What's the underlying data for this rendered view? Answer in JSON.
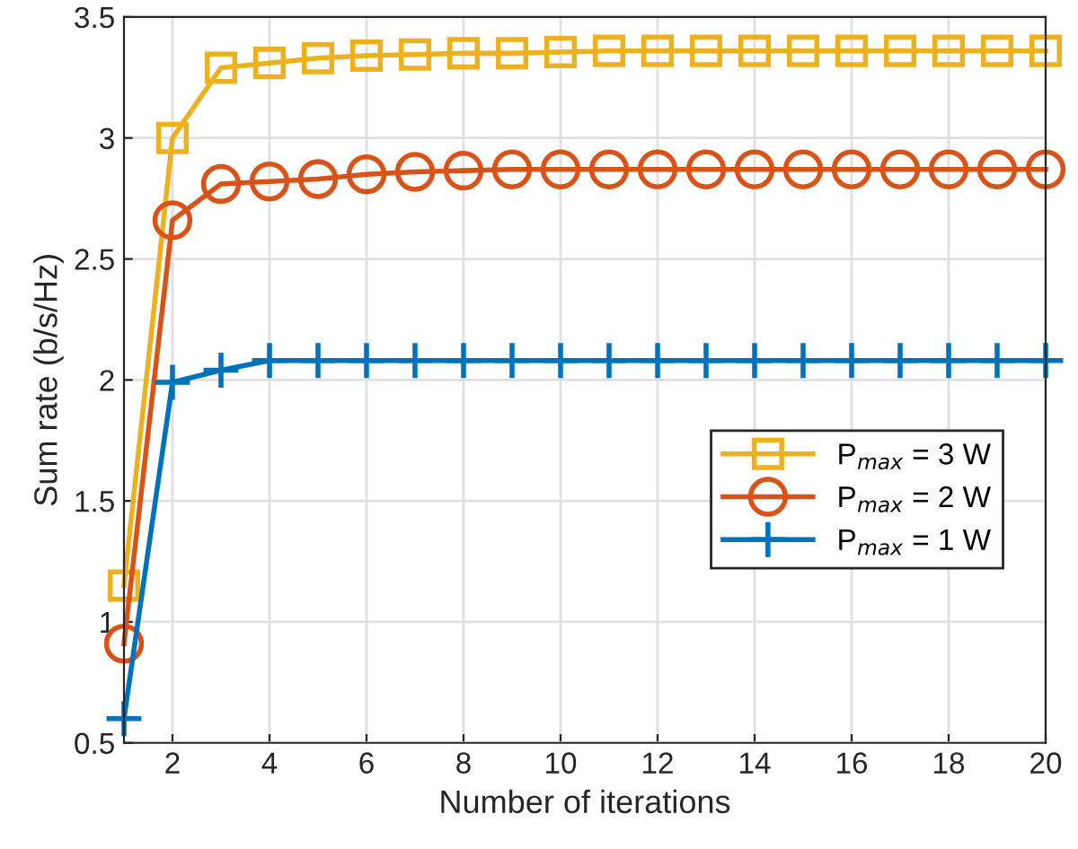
{
  "chart_data": {
    "type": "line",
    "xlabel": "Number of iterations",
    "ylabel": "Sum rate (b/s/Hz)",
    "x": [
      1,
      2,
      3,
      4,
      5,
      6,
      7,
      8,
      9,
      10,
      11,
      12,
      13,
      14,
      15,
      16,
      17,
      18,
      19,
      20
    ],
    "xlim": [
      1,
      20
    ],
    "xticks": [
      2,
      4,
      6,
      8,
      10,
      12,
      14,
      16,
      18,
      20
    ],
    "ylim": [
      0.5,
      3.5
    ],
    "yticks": [
      0.5,
      1,
      1.5,
      2,
      2.5,
      3,
      3.5
    ],
    "grid": true,
    "legend": "bottom right",
    "series": [
      {
        "name": "P$_{max}$ = 3 W",
        "color": "#edb120",
        "marker": "square",
        "values": [
          1.15,
          3.0,
          3.29,
          3.31,
          3.33,
          3.34,
          3.345,
          3.35,
          3.35,
          3.355,
          3.36,
          3.36,
          3.36,
          3.36,
          3.36,
          3.36,
          3.36,
          3.36,
          3.36,
          3.36
        ]
      },
      {
        "name": "P$_{max}$ = 2 W",
        "color": "#d95319",
        "marker": "circle",
        "values": [
          0.91,
          2.66,
          2.81,
          2.82,
          2.83,
          2.85,
          2.86,
          2.865,
          2.87,
          2.87,
          2.87,
          2.87,
          2.87,
          2.87,
          2.87,
          2.87,
          2.87,
          2.87,
          2.87,
          2.87
        ]
      },
      {
        "name": "P$_{max}$ = 1 W",
        "color": "#0072bd",
        "marker": "cross",
        "values": [
          0.6,
          1.99,
          2.04,
          2.08,
          2.08,
          2.08,
          2.08,
          2.08,
          2.08,
          2.08,
          2.08,
          2.08,
          2.08,
          2.08,
          2.08,
          2.08,
          2.08,
          2.08,
          2.08,
          2.08
        ]
      }
    ]
  }
}
